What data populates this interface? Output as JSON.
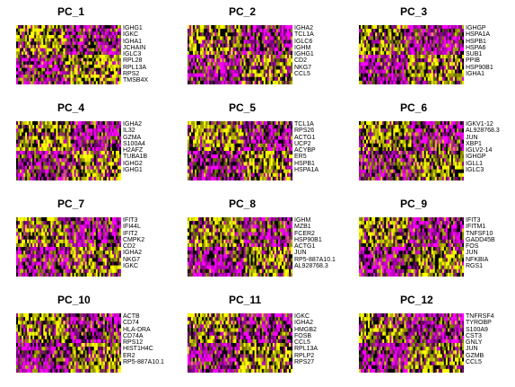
{
  "chart_data": {
    "type": "heatmap",
    "layout": "3 columns x 4 rows",
    "color_scale": {
      "low": "#FF00FF",
      "mid": "#000000",
      "high": "#FFFF00"
    },
    "panels": [
      {
        "title": "PC_1",
        "genes": [
          "IGHG1",
          "IGKC",
          "IGHA1",
          "JCHAIN",
          "IGLC3",
          "RPL28",
          "RPL13A",
          "RPS2",
          "TMSB4X"
        ]
      },
      {
        "title": "PC_2",
        "genes": [
          "IGHA2",
          "TCL1A",
          "IGLC6",
          "IGHM",
          "IGHG1",
          "CD2",
          "NKG7",
          "CCL5"
        ]
      },
      {
        "title": "PC_3",
        "genes": [
          "IGHGP",
          "HSPA1A",
          "HSPB1",
          "HSPA6",
          "SUB1",
          "PPIB",
          "HSP90B1",
          "IGHA1"
        ]
      },
      {
        "title": "PC_4",
        "genes": [
          "IGHA2",
          "IL32",
          "GZMA",
          "S100A4",
          "H2AFZ",
          "TUBA1B",
          "IGHG2",
          "IGHG1"
        ]
      },
      {
        "title": "PC_5",
        "genes": [
          "TCL1A",
          "RPS26",
          "ACTG1",
          "UCP2",
          "ACYBP",
          "ER5",
          "HSPB1",
          "HSPA1A"
        ]
      },
      {
        "title": "PC_6",
        "genes": [
          "IGKV1-12",
          "AL928768.3",
          "JUN",
          "XBP1",
          "IGLV2-14",
          "IGHGP",
          "IGLL1",
          "IGLC3"
        ]
      },
      {
        "title": "PC_7",
        "genes": [
          "IFIT3",
          "IFI44L",
          "IFIT2",
          "CMPK2",
          "CD2",
          "IGHA2",
          "NKG7",
          "IGKC"
        ]
      },
      {
        "title": "PC_8",
        "genes": [
          "IGHM",
          "MZB1",
          "FCER2",
          "HSP90B1",
          "ACTG1",
          "JUN",
          "RP5-887A10.1",
          "AL928768.3"
        ]
      },
      {
        "title": "PC_9",
        "genes": [
          "IFIT3",
          "IFITM1",
          "TNFSF10",
          "GADD45B",
          "FOS",
          "JUN",
          "NFKBIA",
          "RGS1"
        ]
      },
      {
        "title": "PC_10",
        "genes": [
          "ACTB",
          "CD74",
          "HLA-DRA",
          "CD74A",
          "RPS12",
          "HIST1H4C",
          "ER2",
          "RP5-887A10.1"
        ]
      },
      {
        "title": "PC_11",
        "genes": [
          "IGKC",
          "IGHA2",
          "HMGB2",
          "FOSB",
          "CCL5",
          "RPL13A",
          "RPLP2",
          "RPS27"
        ]
      },
      {
        "title": "PC_12",
        "genes": [
          "TNFRSF4",
          "TYROBP",
          "S100A9",
          "CST3",
          "GNLY",
          "JUN",
          "GZMB",
          "CCL5"
        ]
      }
    ]
  }
}
